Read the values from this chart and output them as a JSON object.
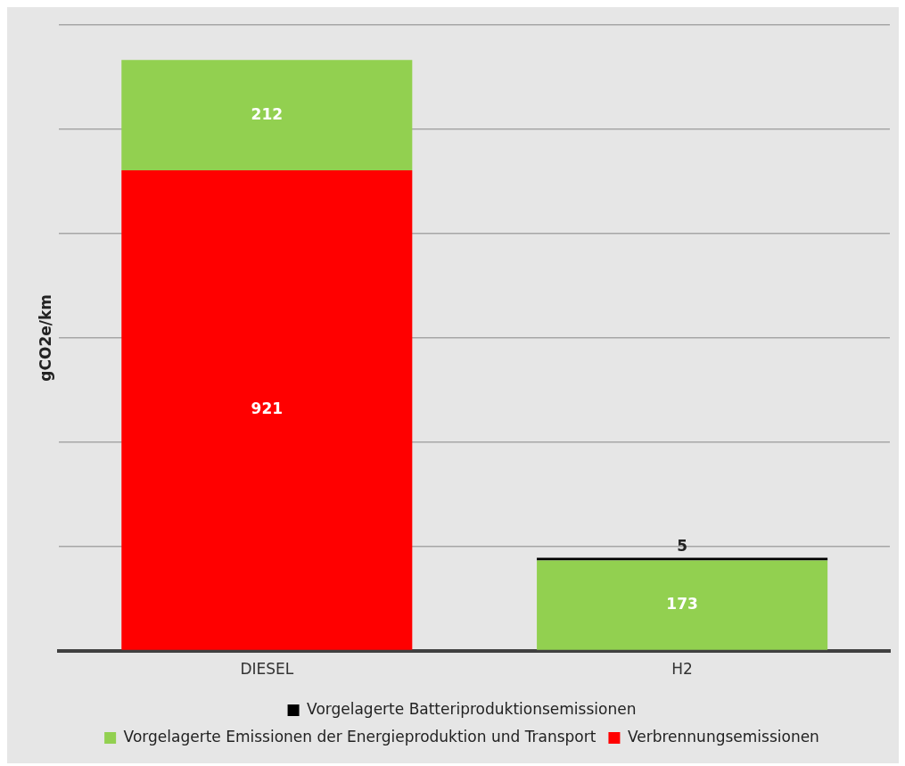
{
  "chart_data": {
    "type": "bar",
    "stacked": true,
    "ylabel": "gCO2e/km",
    "categories": [
      "DIESEL",
      "H2"
    ],
    "series": [
      {
        "name": "Verbrennungsemissionen",
        "color": "#ff0000",
        "values": [
          921,
          null
        ]
      },
      {
        "name": "Vorgelagerte Emissionen der Energieproduktion und Transport",
        "color": "#92d050",
        "values": [
          212,
          173
        ]
      },
      {
        "name": "Vorgelagerte Batteriproduktionsemissionen",
        "color": "#000000",
        "values": [
          null,
          5
        ]
      }
    ],
    "ylim": [
      0,
      1200
    ],
    "yticks": [
      {
        "value": 0,
        "label": null
      },
      {
        "value": 200,
        "label": null
      },
      {
        "value": 400,
        "label": null
      },
      {
        "value": 600,
        "label": null
      },
      {
        "value": 800,
        "label": null
      },
      {
        "value": 1000,
        "label": null
      },
      {
        "value": 1200,
        "label": null
      }
    ],
    "tick_labels": "x",
    "grid": "y",
    "legend": "bottom",
    "data_labels": true
  }
}
